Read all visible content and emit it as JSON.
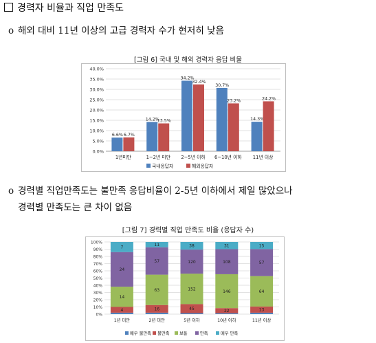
{
  "section": {
    "title": "경력자 비율과 직업 만족도"
  },
  "bullets": [
    {
      "mark": "o",
      "text": "해외 대비 11년 이상의 고급 경력자 수가 현저히 낮음"
    },
    {
      "mark": "o",
      "line1": "경력별 직업만족도는 불만족 응답비율이 2-5년 이하에서 제일 많았으나",
      "line2": "경력별 만족도는 큰 차이 없음"
    }
  ],
  "chart_data": [
    {
      "type": "bar",
      "title": "[그림 6] 국내 및 해외 경력자 응답 비율",
      "categories": [
        "1년미만",
        "1~2년 미만",
        "2~5년 이하",
        "6~10년 이하",
        "11년 이상"
      ],
      "series": [
        {
          "name": "국내응답자",
          "color": "#4f81bd",
          "values": [
            6.6,
            14.2,
            34.2,
            30.7,
            14.3
          ],
          "labels": [
            "6.6%",
            "14.2%",
            "34.2%",
            "30.7%",
            "14.3%"
          ]
        },
        {
          "name": "해외응답자",
          "color": "#c0504d",
          "values": [
            6.7,
            13.5,
            32.4,
            23.2,
            24.2
          ],
          "labels": [
            "6.7%",
            "13.5%",
            "32.4%",
            "23.2%",
            "24.2%"
          ]
        }
      ],
      "ylim": [
        0,
        40
      ],
      "yticks": [
        "0.0%",
        "5.0%",
        "10.0%",
        "15.0%",
        "20.0%",
        "25.0%",
        "30.0%",
        "35.0%",
        "40.0%"
      ],
      "grid": true,
      "legend": "bottom"
    },
    {
      "type": "bar",
      "stacked": "percent",
      "title": "[그림 7] 경력별 직업 만족도 비율 (응답자 수)",
      "categories": [
        "1년 미만",
        "2년 미만",
        "5년 이하",
        "10년 이하",
        "11년 이상"
      ],
      "series": [
        {
          "name": "매우 불만족",
          "color": "#4f81bd",
          "values": [
            1,
            3,
            5,
            4,
            3
          ],
          "labels": [
            "",
            "",
            "",
            "",
            ""
          ]
        },
        {
          "name": "불만족",
          "color": "#c0504d",
          "values": [
            4,
            16,
            45,
            22,
            13
          ],
          "labels": [
            "4",
            "16",
            "45",
            "22",
            "13"
          ]
        },
        {
          "name": "보통",
          "color": "#9bbb59",
          "values": [
            14,
            63,
            152,
            146,
            64
          ],
          "labels": [
            "14",
            "63",
            "152",
            "146",
            "64"
          ]
        },
        {
          "name": "만족",
          "color": "#8064a2",
          "values": [
            24,
            57,
            120,
            108,
            57
          ],
          "labels": [
            "24",
            "57",
            "120",
            "108",
            "57"
          ]
        },
        {
          "name": "매우 만족",
          "color": "#4bacc6",
          "values": [
            7,
            11,
            38,
            31,
            15
          ],
          "labels": [
            "7",
            "11",
            "38",
            "31",
            "15"
          ]
        }
      ],
      "ylim": [
        0,
        100
      ],
      "yticks": [
        "0%",
        "10%",
        "20%",
        "30%",
        "40%",
        "50%",
        "60%",
        "70%",
        "80%",
        "90%",
        "100%"
      ],
      "grid": true,
      "legend": "bottom"
    }
  ]
}
